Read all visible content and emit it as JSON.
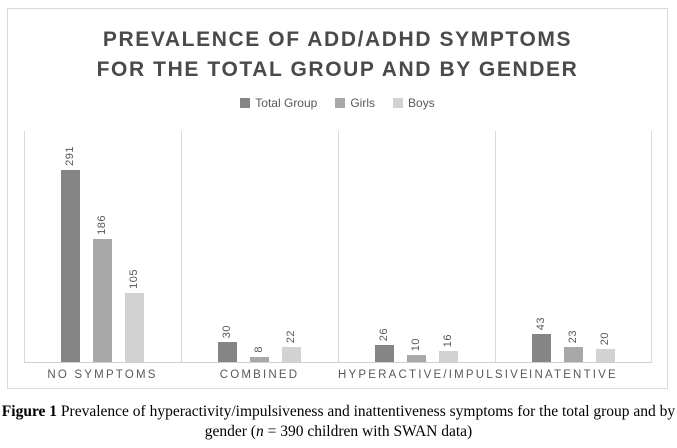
{
  "figure": {
    "title_line1": "PREVALENCE OF ADD/ADHD SYMPTOMS",
    "title_line2": "FOR THE TOTAL GROUP AND BY GENDER"
  },
  "chart_data": {
    "type": "bar",
    "title": "PREVALENCE OF ADD/ADHD SYMPTOMS FOR THE TOTAL GROUP AND BY GENDER",
    "categories": [
      "NO SYMPTOMS",
      "COMBINED",
      "HYPERACTIVE/IMPULSIVE",
      "INATENTIVE"
    ],
    "series": [
      {
        "name": "Total Group",
        "color": "#858585",
        "values": [
          291,
          30,
          26,
          43
        ]
      },
      {
        "name": "Girls",
        "color": "#a8a8a8",
        "values": [
          186,
          8,
          10,
          23
        ]
      },
      {
        "name": "Boys",
        "color": "#d2d2d2",
        "values": [
          105,
          22,
          16,
          20
        ]
      }
    ],
    "ylim": [
      0,
      350
    ],
    "grid": false,
    "legend_position": "top",
    "data_labels": true,
    "axis_line_color": "#d9d9d9",
    "title_color": "#4a4a4a",
    "label_color": "#595959"
  },
  "caption": {
    "figure_label": "Figure 1",
    "line1_rest": " Prevalence of hyperactivity/impulsiveness and inattentiveness symptoms for the total group and by",
    "line2_pre": "gender (",
    "n_italic": "n",
    "line2_post": " = 390 children with SWAN data)"
  }
}
